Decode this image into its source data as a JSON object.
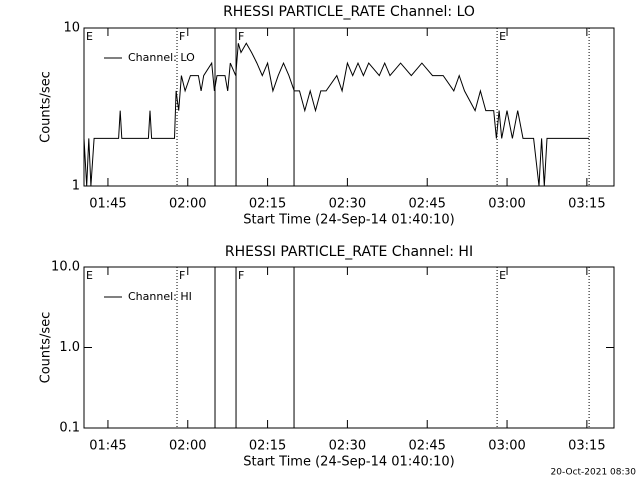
{
  "chart_data": [
    {
      "type": "line",
      "title": "RHESSI PARTICLE_RATE Channel: LO",
      "xlabel": "Start Time (24-Sep-14 01:40:10)",
      "ylabel": "Counts/sec",
      "ylog": true,
      "ylim": [
        1,
        10
      ],
      "yticks": [
        1,
        10
      ],
      "xlim": [
        100.5,
        200.1
      ],
      "xticks": [
        {
          "value": 105,
          "label": "01:45"
        },
        {
          "value": 120,
          "label": "02:00"
        },
        {
          "value": 135,
          "label": "02:15"
        },
        {
          "value": 150,
          "label": "02:30"
        },
        {
          "value": 165,
          "label": "02:45"
        },
        {
          "value": 180,
          "label": "03:00"
        },
        {
          "value": 195,
          "label": "03:15"
        }
      ],
      "flags": [
        {
          "x": 100.5,
          "label": "E",
          "style": "dotted"
        },
        {
          "x": 117.98,
          "label": "F",
          "style": "dotted"
        },
        {
          "x": 125.12,
          "style": "solid"
        },
        {
          "x": 129.07,
          "label": "F",
          "style": "solid"
        },
        {
          "x": 139.97,
          "style": "solid"
        },
        {
          "x": 178.13,
          "label": "E",
          "style": "dotted"
        },
        {
          "x": 195.42,
          "style": "dotted"
        }
      ],
      "series": [
        {
          "name": "Channel: LO",
          "color": "#000000",
          "x": [
            100.5,
            101.0,
            101.4,
            101.8,
            102.4,
            107.0,
            107.3,
            107.6,
            112.6,
            112.9,
            113.2,
            117.5,
            117.8,
            118.3,
            118.8,
            119.5,
            120.5,
            122,
            122.5,
            123,
            124.5,
            125,
            125.5,
            127,
            127.5,
            128,
            129,
            129.5,
            130,
            131,
            132,
            133,
            134,
            135,
            136,
            137,
            138,
            139,
            140,
            141,
            142,
            143,
            144,
            145,
            146,
            148,
            149,
            150,
            151,
            152,
            153,
            154,
            156,
            157,
            158,
            160,
            162,
            164,
            166,
            168,
            170,
            171,
            172,
            174,
            175,
            176,
            177.5,
            178,
            178.5,
            179,
            180,
            181,
            182,
            183,
            185,
            186,
            186.5,
            187,
            187.5,
            188,
            190,
            195.4
          ],
          "values": [
            2,
            1,
            2,
            1,
            2,
            2,
            3,
            2,
            2,
            3,
            2,
            2,
            4,
            3,
            5,
            4,
            5,
            5,
            4,
            5,
            6,
            4,
            5,
            5,
            4,
            6,
            5,
            8,
            7,
            8,
            7,
            6,
            5,
            6,
            4,
            5,
            6,
            5,
            4,
            4,
            3,
            4,
            3,
            4,
            4,
            5,
            4,
            6,
            5,
            6,
            5,
            6,
            5,
            6,
            5,
            6,
            5,
            6,
            5,
            5,
            4,
            5,
            4,
            3,
            4,
            3,
            3,
            2,
            3,
            2,
            3,
            2,
            3,
            2,
            2,
            1,
            2,
            1,
            2,
            2,
            2,
            2
          ]
        }
      ]
    },
    {
      "type": "line",
      "title": "RHESSI PARTICLE_RATE Channel: HI",
      "xlabel": "Start Time (24-Sep-14 01:40:10)",
      "ylabel": "Counts/sec",
      "ylog": true,
      "ylim": [
        0.1,
        10
      ],
      "yticks": [
        0.1,
        {
          "value": 1,
          "label": "1.0"
        },
        {
          "value": 10,
          "label": "10.0"
        }
      ],
      "xlim": [
        100.5,
        200.1
      ],
      "xticks": [
        {
          "value": 105,
          "label": "01:45"
        },
        {
          "value": 120,
          "label": "02:00"
        },
        {
          "value": 135,
          "label": "02:15"
        },
        {
          "value": 150,
          "label": "02:30"
        },
        {
          "value": 165,
          "label": "02:45"
        },
        {
          "value": 180,
          "label": "03:00"
        },
        {
          "value": 195,
          "label": "03:15"
        }
      ],
      "flags": [
        {
          "x": 100.5,
          "label": "E",
          "style": "dotted"
        },
        {
          "x": 117.98,
          "label": "F",
          "style": "dotted"
        },
        {
          "x": 125.12,
          "style": "solid"
        },
        {
          "x": 129.07,
          "label": "F",
          "style": "solid"
        },
        {
          "x": 139.97,
          "style": "solid"
        },
        {
          "x": 178.13,
          "label": "E",
          "style": "dotted"
        },
        {
          "x": 195.42,
          "style": "dotted"
        }
      ],
      "series": [
        {
          "name": "Channel: HI",
          "color": "#000000",
          "x": [],
          "values": []
        }
      ]
    }
  ],
  "footer": "20-Oct-2021 08:30"
}
